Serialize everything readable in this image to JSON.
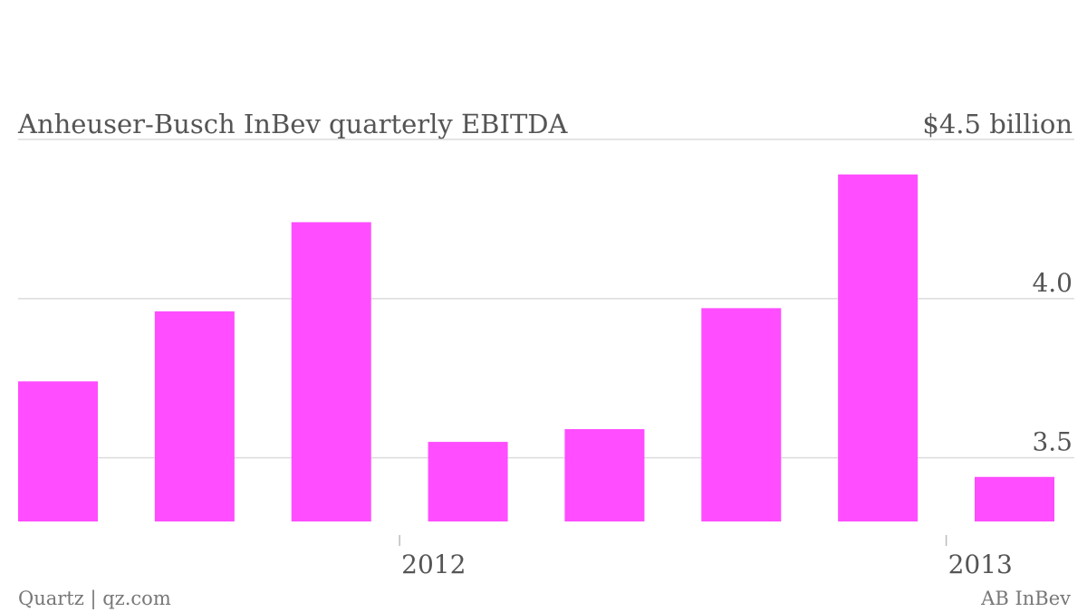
{
  "chart_data": {
    "type": "bar",
    "title": "Anheuser-Busch InBev quarterly EBITDA",
    "y_top_label": "$4.5 billion",
    "ytick_labels": [
      "4.0",
      "3.5"
    ],
    "yticks": [
      4.5,
      4.0,
      3.5
    ],
    "ylim": [
      3.3,
      4.5
    ],
    "grid": true,
    "x_labels": [
      {
        "label": "2012",
        "after_bar": 2
      },
      {
        "label": "2013",
        "after_bar": 6
      }
    ],
    "series": [
      {
        "values": [
          3.74,
          3.96,
          4.24,
          3.55,
          3.59,
          3.97,
          4.39,
          3.44
        ],
        "color": "#ff4dff"
      }
    ]
  },
  "footer": {
    "source_left": "Quartz | qz.com",
    "source_right": "AB InBev"
  }
}
